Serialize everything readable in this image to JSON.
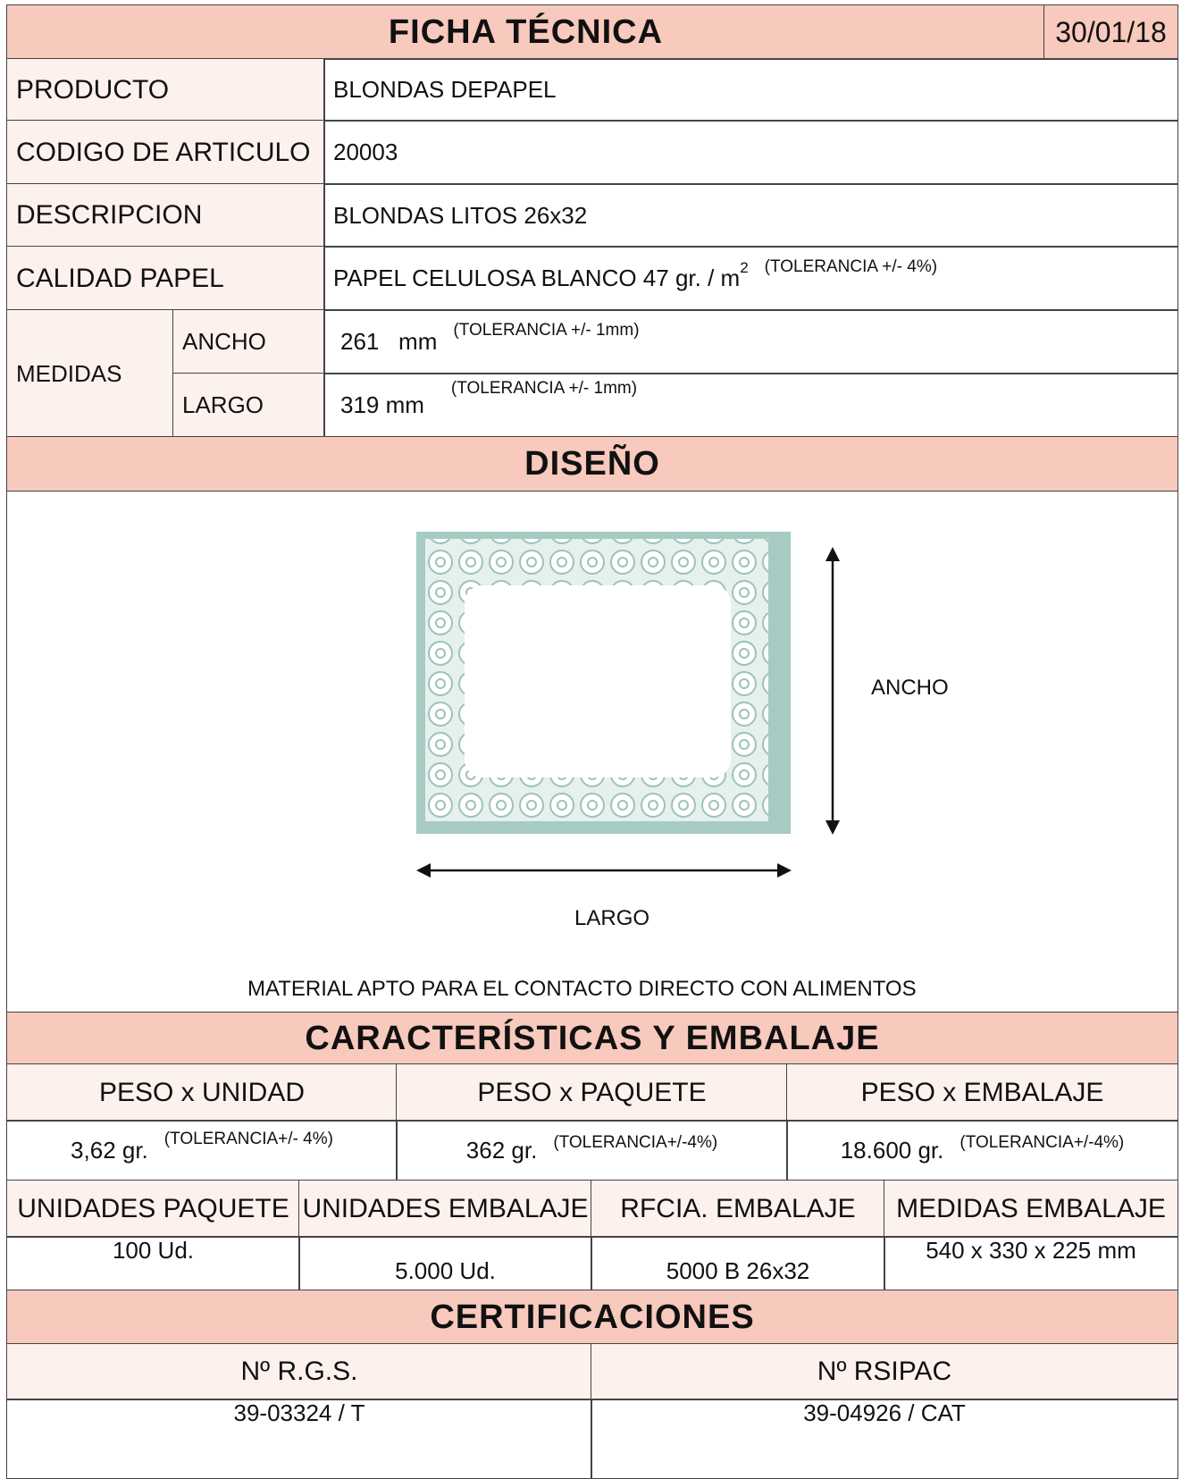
{
  "header": {
    "title": "FICHA TÉCNICA",
    "date": "30/01/18"
  },
  "rows": [
    {
      "label": "PRODUCTO",
      "value": "BLONDAS DEPAPEL"
    },
    {
      "label": "CODIGO DE ARTICULO",
      "value": "20003"
    },
    {
      "label": "DESCRIPCION",
      "value": "BLONDAS LITOS 26x32"
    },
    {
      "label": "CALIDAD PAPEL",
      "value": "PAPEL CELULOSA BLANCO 47 gr. / m",
      "sup": "2",
      "note": "(TOLERANCIA +/- 4%)"
    }
  ],
  "medidas": {
    "label": "MEDIDAS",
    "ancho": {
      "label": "ANCHO",
      "value": "261   mm",
      "note": "(TOLERANCIA  +/-  1mm)"
    },
    "largo": {
      "label": "LARGO",
      "value": "319 mm",
      "note": "(TOLERANCIA +/- 1mm)"
    }
  },
  "design": {
    "title": "DISEÑO",
    "ancho": "ANCHO",
    "largo": "LARGO",
    "note": "MATERIAL APTO PARA EL CONTACTO DIRECTO CON ALIMENTOS"
  },
  "caracteristicas": {
    "title": "CARACTERÍSTICAS Y EMBALAJE",
    "peso": [
      {
        "label": "PESO x UNIDAD",
        "value": "3,62 gr.",
        "note": "(TOLERANCIA+/- 4%)"
      },
      {
        "label": "PESO x PAQUETE",
        "value": "362 gr.",
        "note": "(TOLERANCIA+/-4%)"
      },
      {
        "label": "PESO x EMBALAJE",
        "value": "18.600 gr.",
        "note": "(TOLERANCIA+/-4%)"
      }
    ],
    "embalaje": [
      {
        "label": "UNIDADES PAQUETE",
        "value": "100 Ud."
      },
      {
        "label": "UNIDADES EMBALAJE",
        "value": "5.000 Ud."
      },
      {
        "label": "RFCIA. EMBALAJE",
        "value": "5000 B 26x32"
      },
      {
        "label": "MEDIDAS EMBALAJE",
        "value": "540 x 330 x 225 mm"
      }
    ]
  },
  "certificaciones": {
    "title": "CERTIFICACIONES",
    "items": [
      {
        "label": "Nº R.G.S.",
        "value": "39-03324 / T"
      },
      {
        "label": "Nº RSIPAC",
        "value": "39-04926 / CAT"
      }
    ]
  }
}
